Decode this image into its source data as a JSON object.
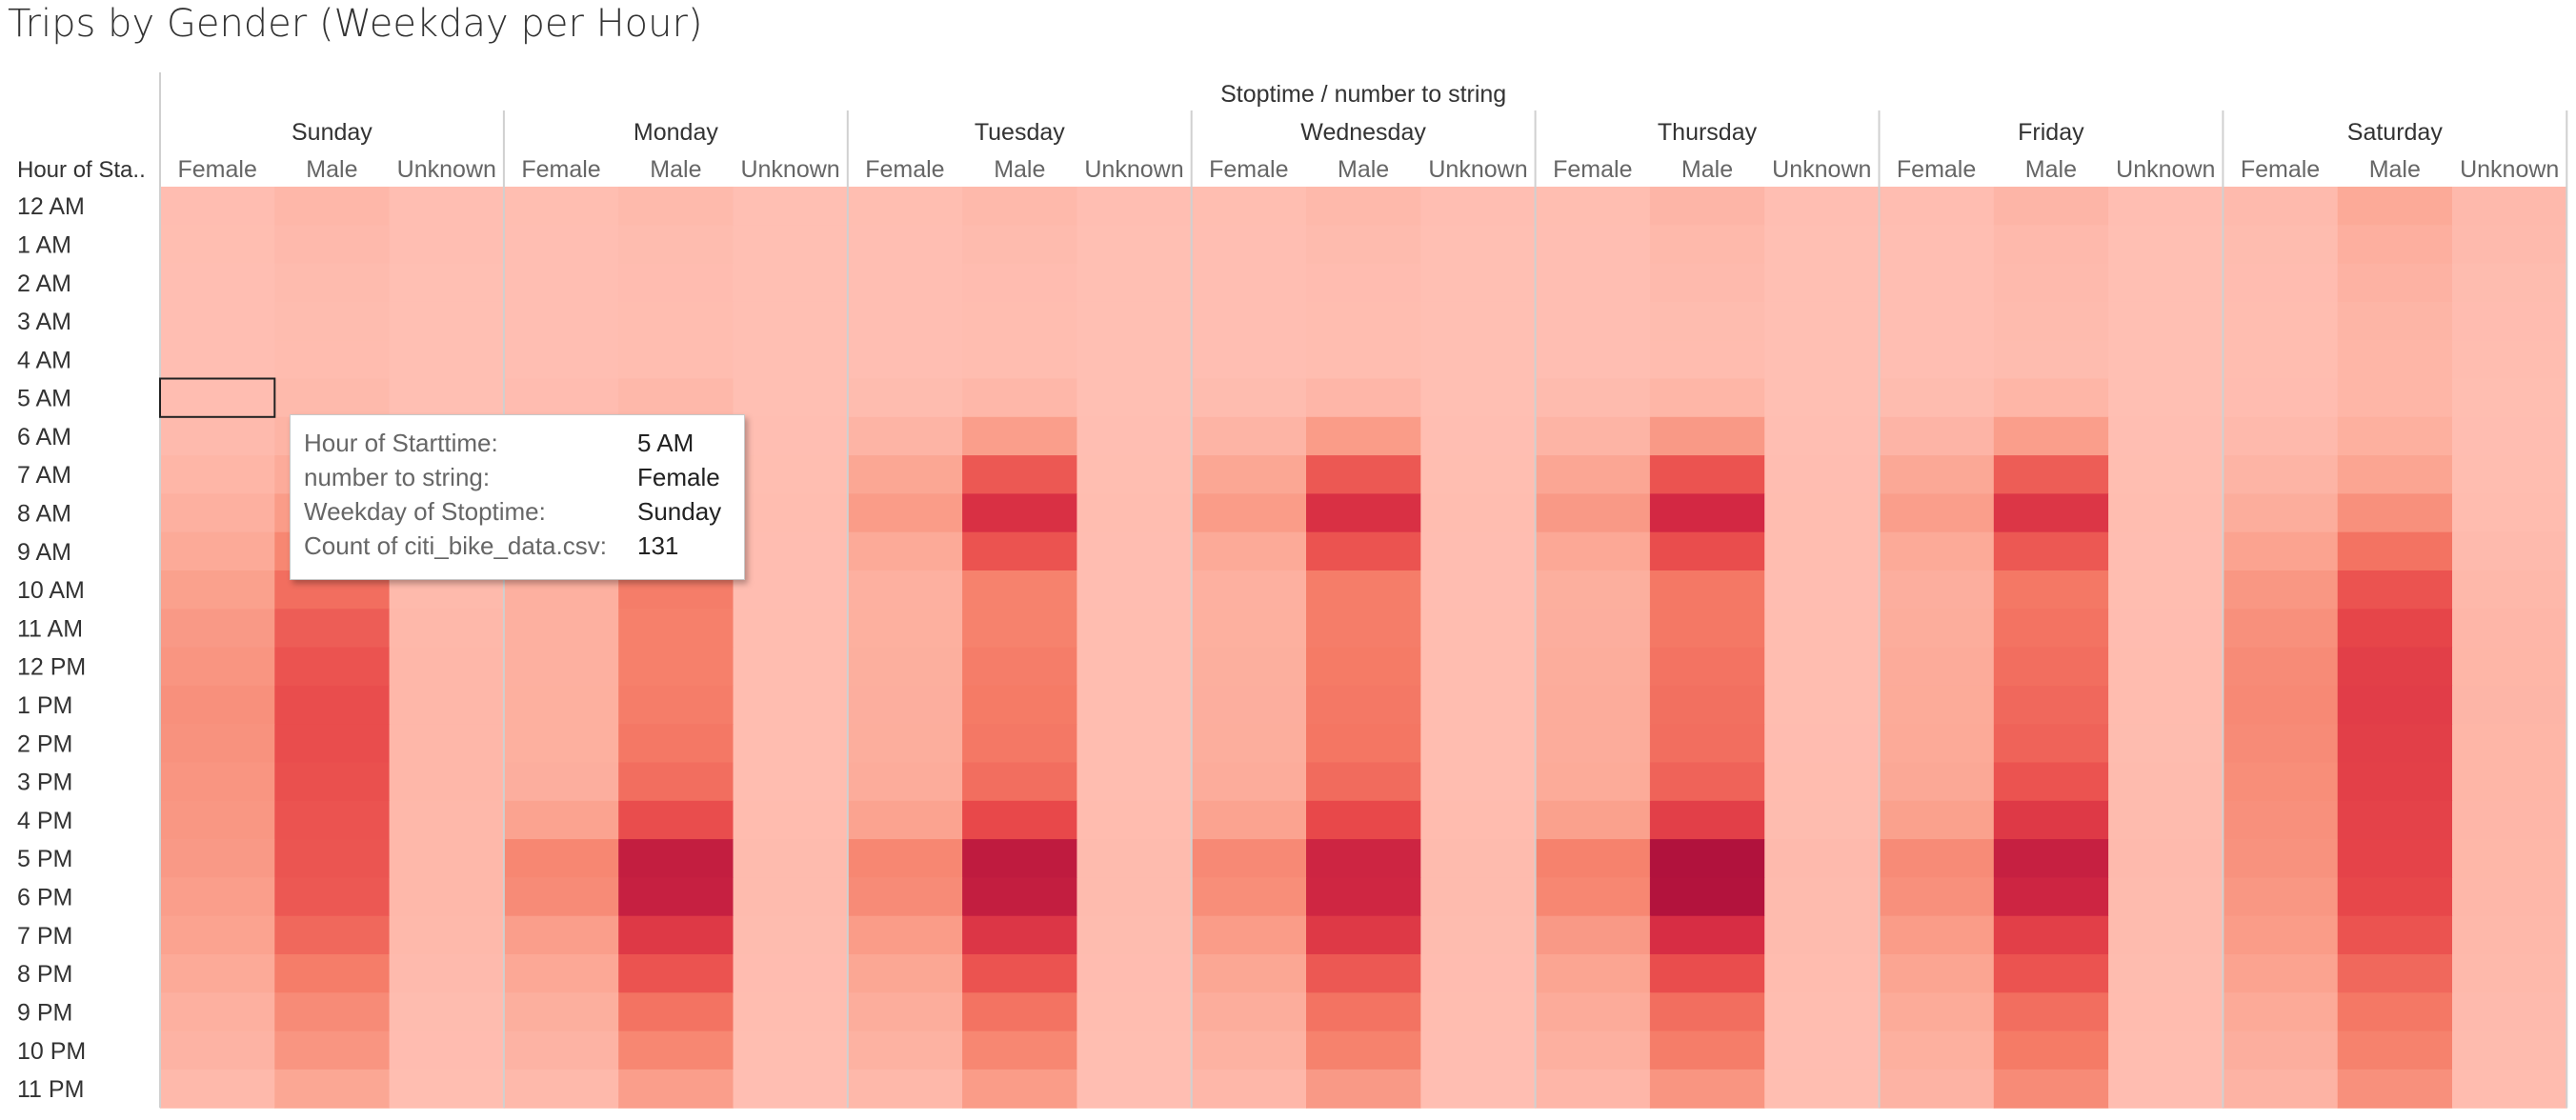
{
  "title": "Trips by Gender (Weekday per Hour)",
  "chart_data": {
    "type": "heatmap",
    "title": "Trips by Gender (Weekday per Hour)",
    "column_header": "Stoptime / number to string",
    "row_header": "Hour of Sta..",
    "days": [
      "Sunday",
      "Monday",
      "Tuesday",
      "Wednesday",
      "Thursday",
      "Friday",
      "Saturday"
    ],
    "genders": [
      "Female",
      "Male",
      "Unknown"
    ],
    "hours": [
      "12 AM",
      "1 AM",
      "2 AM",
      "3 AM",
      "4 AM",
      "5 AM",
      "6 AM",
      "7 AM",
      "8 AM",
      "9 AM",
      "10 AM",
      "11 AM",
      "12 PM",
      "1 PM",
      "2 PM",
      "3 PM",
      "4 PM",
      "5 PM",
      "6 PM",
      "7 PM",
      "8 PM",
      "9 PM",
      "10 PM",
      "11 PM"
    ],
    "color_scale": [
      "#ffbfb3",
      "#fba592",
      "#f57b66",
      "#e8484a",
      "#d52a43",
      "#b1123d"
    ],
    "values": [
      [
        [
          130,
          300,
          110
        ],
        [
          120,
          220,
          95
        ],
        [
          120,
          250,
          105
        ],
        [
          120,
          240,
          105
        ],
        [
          115,
          350,
          100
        ],
        [
          130,
          350,
          110
        ],
        [
          200,
          700,
          230
        ]
      ],
      [
        [
          115,
          230,
          100
        ],
        [
          110,
          170,
          90
        ],
        [
          105,
          180,
          90
        ],
        [
          105,
          190,
          90
        ],
        [
          108,
          240,
          95
        ],
        [
          110,
          230,
          95
        ],
        [
          170,
          530,
          200
        ]
      ],
      [
        [
          110,
          190,
          95
        ],
        [
          105,
          150,
          90
        ],
        [
          100,
          150,
          88
        ],
        [
          100,
          150,
          88
        ],
        [
          104,
          200,
          92
        ],
        [
          106,
          200,
          92
        ],
        [
          150,
          440,
          170
        ]
      ],
      [
        [
          108,
          170,
          92
        ],
        [
          100,
          140,
          88
        ],
        [
          100,
          140,
          88
        ],
        [
          100,
          140,
          88
        ],
        [
          100,
          170,
          90
        ],
        [
          104,
          180,
          90
        ],
        [
          140,
          360,
          150
        ]
      ],
      [
        [
          105,
          160,
          90
        ],
        [
          100,
          140,
          88
        ],
        [
          100,
          140,
          88
        ],
        [
          100,
          140,
          88
        ],
        [
          100,
          160,
          90
        ],
        [
          104,
          170,
          90
        ],
        [
          135,
          330,
          140
        ]
      ],
      [
        [
          131,
          220,
          95
        ],
        [
          150,
          280,
          95
        ],
        [
          170,
          300,
          95
        ],
        [
          170,
          320,
          95
        ],
        [
          175,
          340,
          95
        ],
        [
          170,
          330,
          95
        ],
        [
          150,
          330,
          120
        ]
      ],
      [
        [
          210,
          380,
          100
        ],
        [
          330,
          850,
          105
        ],
        [
          380,
          1000,
          110
        ],
        [
          380,
          1050,
          110
        ],
        [
          390,
          1100,
          110
        ],
        [
          370,
          1000,
          110
        ],
        [
          230,
          520,
          125
        ]
      ],
      [
        [
          330,
          650,
          110
        ],
        [
          700,
          2100,
          120
        ],
        [
          800,
          2400,
          120
        ],
        [
          800,
          2400,
          120
        ],
        [
          820,
          2500,
          125
        ],
        [
          760,
          2300,
          120
        ],
        [
          390,
          850,
          140
        ]
      ],
      [
        [
          500,
          1050,
          130
        ],
        [
          1000,
          3300,
          135
        ],
        [
          1050,
          3500,
          135
        ],
        [
          1050,
          3500,
          135
        ],
        [
          1100,
          3750,
          140
        ],
        [
          1000,
          3300,
          135
        ],
        [
          600,
          1300,
          160
        ]
      ],
      [
        [
          700,
          1500,
          160
        ],
        [
          650,
          2300,
          130
        ],
        [
          700,
          2500,
          130
        ],
        [
          700,
          2500,
          130
        ],
        [
          750,
          2600,
          135
        ],
        [
          700,
          2400,
          130
        ],
        [
          900,
          1900,
          200
        ]
      ],
      [
        [
          950,
          2000,
          220
        ],
        [
          500,
          1700,
          130
        ],
        [
          500,
          1600,
          130
        ],
        [
          500,
          1700,
          130
        ],
        [
          550,
          1800,
          130
        ],
        [
          560,
          1800,
          140
        ],
        [
          1150,
          2500,
          280
        ]
      ],
      [
        [
          1100,
          2300,
          260
        ],
        [
          500,
          1650,
          135
        ],
        [
          520,
          1600,
          135
        ],
        [
          520,
          1700,
          135
        ],
        [
          560,
          1800,
          140
        ],
        [
          600,
          1900,
          150
        ],
        [
          1300,
          2800,
          320
        ]
      ],
      [
        [
          1200,
          2500,
          290
        ],
        [
          500,
          1650,
          140
        ],
        [
          550,
          1700,
          140
        ],
        [
          550,
          1750,
          140
        ],
        [
          600,
          1900,
          140
        ],
        [
          650,
          2000,
          160
        ],
        [
          1400,
          3000,
          340
        ]
      ],
      [
        [
          1300,
          2600,
          300
        ],
        [
          520,
          1700,
          140
        ],
        [
          560,
          1750,
          140
        ],
        [
          560,
          1800,
          140
        ],
        [
          620,
          1950,
          145
        ],
        [
          680,
          2100,
          160
        ],
        [
          1450,
          3050,
          350
        ]
      ],
      [
        [
          1250,
          2600,
          300
        ],
        [
          520,
          1800,
          140
        ],
        [
          570,
          1800,
          140
        ],
        [
          570,
          1850,
          140
        ],
        [
          630,
          2000,
          150
        ],
        [
          700,
          2200,
          170
        ],
        [
          1400,
          3000,
          340
        ]
      ],
      [
        [
          1200,
          2550,
          290
        ],
        [
          560,
          2000,
          145
        ],
        [
          620,
          2000,
          145
        ],
        [
          620,
          2050,
          145
        ],
        [
          680,
          2200,
          155
        ],
        [
          760,
          2500,
          180
        ],
        [
          1350,
          2950,
          330
        ]
      ],
      [
        [
          1150,
          2500,
          280
        ],
        [
          900,
          2600,
          160
        ],
        [
          900,
          2700,
          160
        ],
        [
          900,
          2700,
          160
        ],
        [
          950,
          3000,
          170
        ],
        [
          950,
          3200,
          190
        ],
        [
          1300,
          2900,
          320
        ]
      ],
      [
        [
          1100,
          2450,
          270
        ],
        [
          1500,
          4200,
          190
        ],
        [
          1500,
          4300,
          190
        ],
        [
          1450,
          3900,
          185
        ],
        [
          1600,
          4700,
          200
        ],
        [
          1400,
          4100,
          200
        ],
        [
          1250,
          2850,
          310
        ]
      ],
      [
        [
          1000,
          2400,
          260
        ],
        [
          1400,
          4100,
          180
        ],
        [
          1400,
          4200,
          180
        ],
        [
          1350,
          3850,
          180
        ],
        [
          1500,
          4650,
          190
        ],
        [
          1300,
          3900,
          190
        ],
        [
          1150,
          2750,
          290
        ]
      ],
      [
        [
          900,
          2100,
          240
        ],
        [
          1000,
          3200,
          170
        ],
        [
          1050,
          3300,
          170
        ],
        [
          1050,
          3200,
          170
        ],
        [
          1100,
          3600,
          175
        ],
        [
          1050,
          3000,
          180
        ],
        [
          1050,
          2500,
          270
        ]
      ],
      [
        [
          700,
          1700,
          200
        ],
        [
          750,
          2500,
          150
        ],
        [
          800,
          2500,
          150
        ],
        [
          800,
          2400,
          150
        ],
        [
          850,
          2600,
          155
        ],
        [
          850,
          2500,
          170
        ],
        [
          900,
          2100,
          240
        ]
      ],
      [
        [
          500,
          1400,
          170
        ],
        [
          550,
          1900,
          135
        ],
        [
          600,
          1900,
          135
        ],
        [
          600,
          1900,
          135
        ],
        [
          650,
          2000,
          140
        ],
        [
          680,
          2000,
          155
        ],
        [
          700,
          1800,
          210
        ]
      ],
      [
        [
          400,
          1200,
          150
        ],
        [
          400,
          1500,
          120
        ],
        [
          450,
          1500,
          120
        ],
        [
          450,
          1600,
          125
        ],
        [
          500,
          1700,
          130
        ],
        [
          520,
          1750,
          140
        ],
        [
          560,
          1600,
          190
        ]
      ],
      [
        [
          250,
          800,
          120
        ],
        [
          250,
          1000,
          105
        ],
        [
          280,
          1050,
          105
        ],
        [
          300,
          1100,
          110
        ],
        [
          320,
          1200,
          115
        ],
        [
          400,
          1400,
          130
        ],
        [
          420,
          1300,
          160
        ]
      ]
    ]
  },
  "tooltip": {
    "rows": [
      {
        "label": "Hour of Starttime:",
        "value": "5 AM"
      },
      {
        "label": "number to string:",
        "value": "Female"
      },
      {
        "label": "Weekday of Stoptime:",
        "value": "Sunday"
      },
      {
        "label": "Count of citi_bike_data.csv:",
        "value": "131"
      }
    ]
  }
}
